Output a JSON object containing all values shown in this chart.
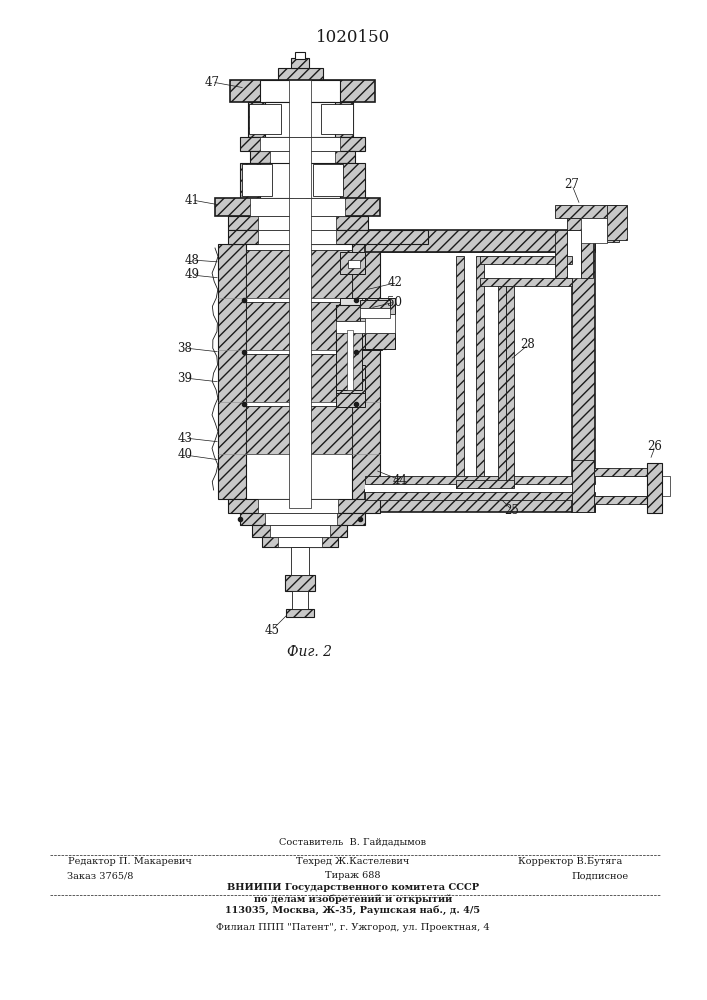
{
  "patent_number": "1020150",
  "figure_label": "Фиг. 2",
  "footer_line1_left": "Редактор П. Макаревич",
  "footer_line1_center_top": "Составитель  В. Гайдадымов",
  "footer_line1_center": "Техред Ж.Кастелевич",
  "footer_line1_right": "Корректор В.Бутяга",
  "footer_line2_left": "Заказ 3765/8",
  "footer_line2_center": "Тираж 688",
  "footer_line2_right": "Подписное",
  "footer_vniipи1": "ВНИИПИ Государственного комитета СССР",
  "footer_vniipи2": "по делам изобретений и открытий",
  "footer_vniipи3": "113035, Москва, Ж-35, Раушская наб., д. 4/5",
  "footer_filial": "Филиал ППП \"Патент\", г. Ужгород, ул. Проектная, 4"
}
